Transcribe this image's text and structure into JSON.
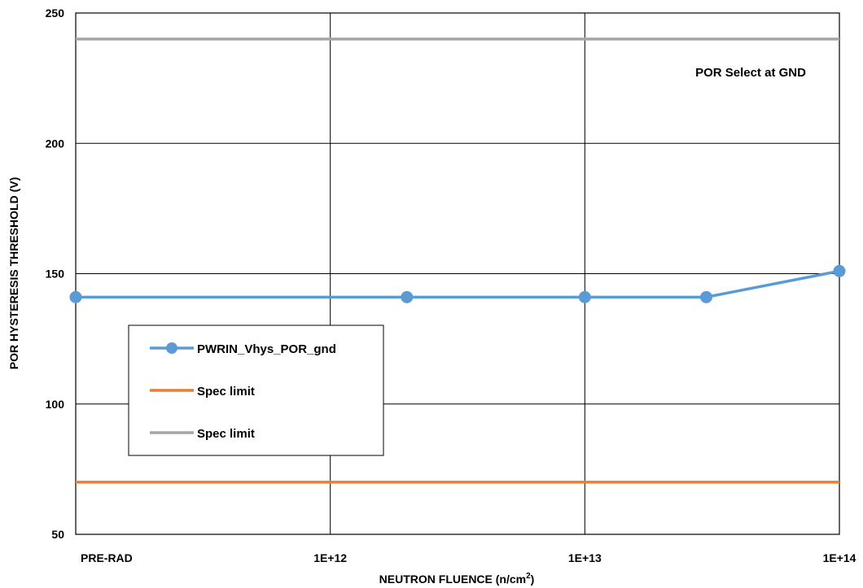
{
  "chart_data": {
    "type": "line",
    "title": "",
    "xlabel": "NEUTRON FLUENCE (n/cm",
    "xlabel_superscript": "2",
    "xlabel_suffix": ")",
    "ylabel": "POR HYSTERESIS THRESHOLD (V)",
    "xscale": "log",
    "xlim": [
      100000000000.0,
      100000000000000.0
    ],
    "ylim": [
      50,
      250
    ],
    "x_ticks": [
      {
        "value": 100000000000.0,
        "label": "PRE-RAD"
      },
      {
        "value": 1000000000000.0,
        "label": "1E+12"
      },
      {
        "value": 10000000000000.0,
        "label": "1E+13"
      },
      {
        "value": 100000000000000.0,
        "label": "1E+14"
      }
    ],
    "y_ticks": [
      50,
      100,
      150,
      200,
      250
    ],
    "grid": true,
    "annotation": "POR Select at GND",
    "legend_position": "left",
    "series": [
      {
        "name": "PWRIN_Vhys_POR_gnd",
        "color": "#5b9bd5",
        "markers": true,
        "x": [
          100000000000.0,
          2000000000000.0,
          10000000000000.0,
          30000000000000.0,
          100000000000000.0
        ],
        "y": [
          141,
          141,
          141,
          141,
          151
        ]
      },
      {
        "name": "Spec limit",
        "color": "#ed7d31",
        "markers": false,
        "x": [
          100000000000.0,
          100000000000000.0
        ],
        "y": [
          70,
          70
        ]
      },
      {
        "name": "Spec limit",
        "color": "#a5a5a5",
        "markers": false,
        "x": [
          100000000000.0,
          100000000000000.0
        ],
        "y": [
          240,
          240
        ]
      }
    ]
  }
}
